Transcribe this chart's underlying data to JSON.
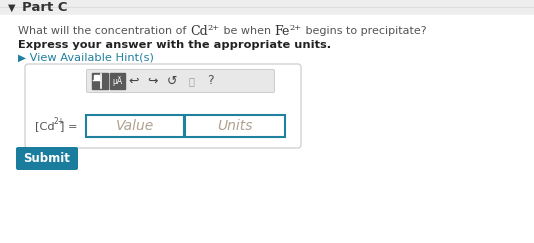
{
  "title": "Part C",
  "q_pre": "What will the concentration of ",
  "q_cd": "Cd",
  "q_cd_sup": "2+",
  "q_mid": " be when ",
  "q_fe": "Fe",
  "q_fe_sup": "2+",
  "q_post": " begins to precipitate?",
  "q_line2": "Express your answer with the appropriate units.",
  "hint_arrow": "▶",
  "hint_text": " View Available Hint(s)",
  "lbl_pre": "[Cd",
  "lbl_sup": "2+",
  "lbl_post": "] =",
  "value_ph": "Value",
  "units_ph": "Units",
  "submit_txt": "Submit",
  "bg": "#f3f3f3",
  "white": "#ffffff",
  "box_border": "#c8c8c8",
  "teal_border": "#2080a0",
  "teal_hint": "#2080a0",
  "teal_submit": "#1a7d9e",
  "title_col": "#333333",
  "q_col": "#555555",
  "q_chem_col": "#333333",
  "bold_col": "#222222",
  "ph_col": "#b0a090",
  "lbl_col": "#555555",
  "icon_dark": "#606060",
  "icon_mid": "#888888",
  "toolbar_bg": "#e8e8e8",
  "toolbar_border": "#cccccc"
}
